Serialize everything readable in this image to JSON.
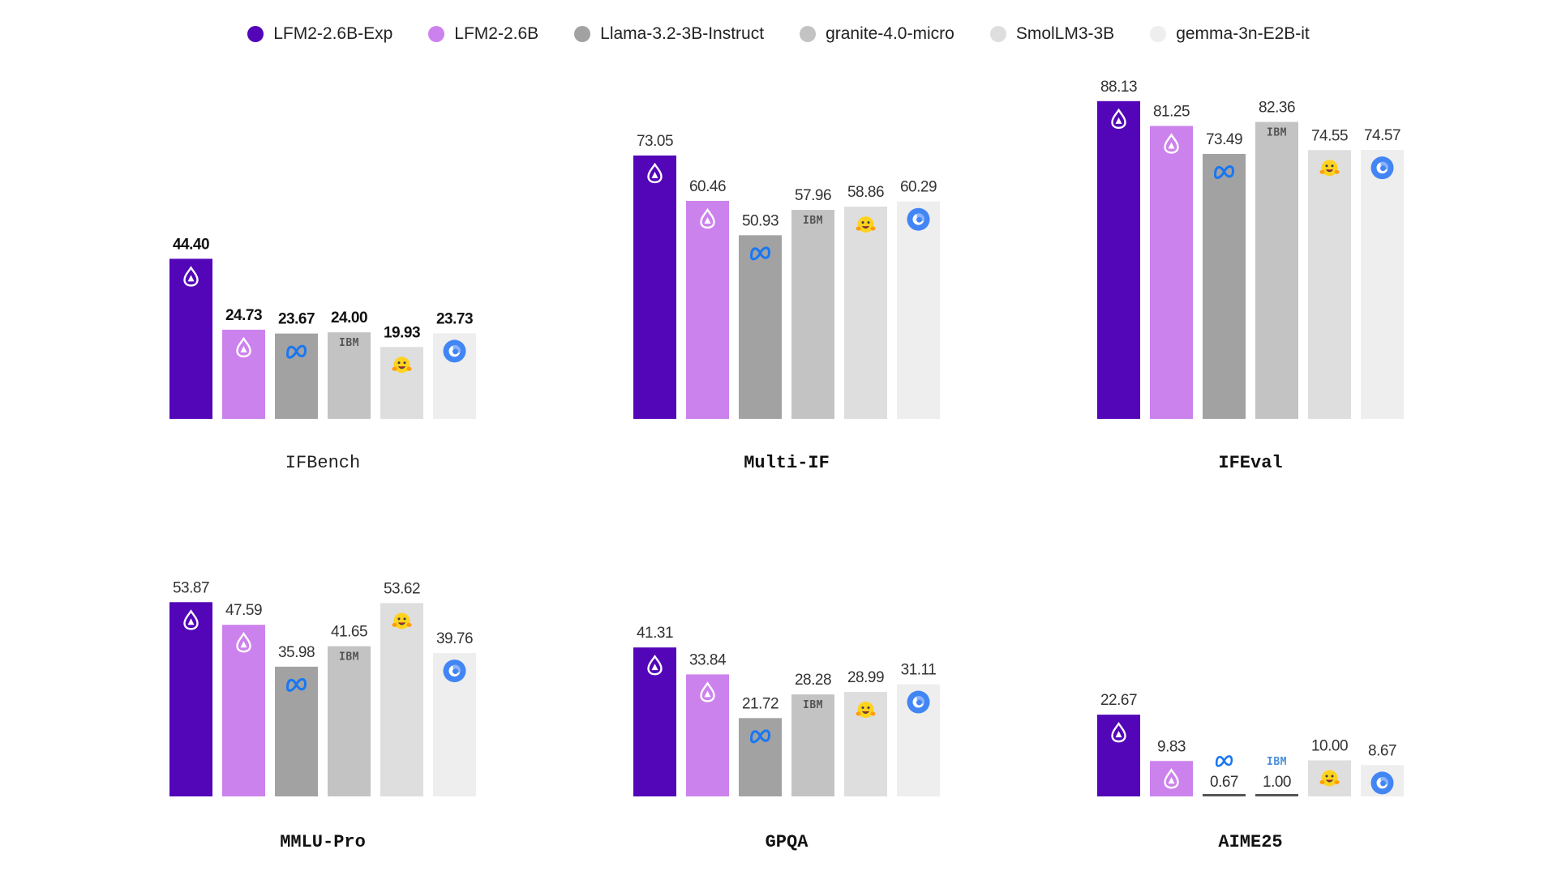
{
  "legend": [
    {
      "label": "LFM2-2.6B-Exp",
      "color": "#5305b8"
    },
    {
      "label": "LFM2-2.6B",
      "color": "#cc82ec"
    },
    {
      "label": "Llama-3.2-3B-Instruct",
      "color": "#a2a2a2"
    },
    {
      "label": "granite-4.0-micro",
      "color": "#c3c3c3"
    },
    {
      "label": "SmolLM3-3B",
      "color": "#dedede"
    },
    {
      "label": "gemma-3n-E2B-it",
      "color": "#eeeeee"
    }
  ],
  "icons": [
    "liquid-logo-icon",
    "liquid-logo-icon",
    "meta-logo-icon",
    "ibm-logo-icon",
    "huggingface-logo-icon",
    "gemma-logo-icon"
  ],
  "ibm_text": "IBM",
  "chart_data": [
    {
      "type": "bar",
      "title": "IFBench",
      "categories": [
        "LFM2-2.6B-Exp",
        "LFM2-2.6B",
        "Llama-3.2-3B-Instruct",
        "granite-4.0-micro",
        "SmolLM3-3B",
        "gemma-3n-E2B-it"
      ],
      "values": [
        44.4,
        24.73,
        23.67,
        24.0,
        19.93,
        23.73
      ],
      "labels": [
        "44.40",
        "24.73",
        "23.67",
        "24.00",
        "19.93",
        "23.73"
      ],
      "bold_labels": true
    },
    {
      "type": "bar",
      "title": "Multi-IF",
      "categories": [
        "LFM2-2.6B-Exp",
        "LFM2-2.6B",
        "Llama-3.2-3B-Instruct",
        "granite-4.0-micro",
        "SmolLM3-3B",
        "gemma-3n-E2B-it"
      ],
      "values": [
        73.05,
        60.46,
        50.93,
        57.96,
        58.86,
        60.29
      ],
      "labels": [
        "73.05",
        "60.46",
        "50.93",
        "57.96",
        "58.86",
        "60.29"
      ],
      "bold_labels": false
    },
    {
      "type": "bar",
      "title": "IFEval",
      "categories": [
        "LFM2-2.6B-Exp",
        "LFM2-2.6B",
        "Llama-3.2-3B-Instruct",
        "granite-4.0-micro",
        "SmolLM3-3B",
        "gemma-3n-E2B-it"
      ],
      "values": [
        88.13,
        81.25,
        73.49,
        82.36,
        74.55,
        74.57
      ],
      "labels": [
        "88.13",
        "81.25",
        "73.49",
        "82.36",
        "74.55",
        "74.57"
      ],
      "bold_labels": false
    },
    {
      "type": "bar",
      "title": "MMLU-Pro",
      "categories": [
        "LFM2-2.6B-Exp",
        "LFM2-2.6B",
        "Llama-3.2-3B-Instruct",
        "granite-4.0-micro",
        "SmolLM3-3B",
        "gemma-3n-E2B-it"
      ],
      "values": [
        53.87,
        47.59,
        35.98,
        41.65,
        53.62,
        39.76
      ],
      "labels": [
        "53.87",
        "47.59",
        "35.98",
        "41.65",
        "53.62",
        "39.76"
      ],
      "bold_labels": false
    },
    {
      "type": "bar",
      "title": "GPQA",
      "categories": [
        "LFM2-2.6B-Exp",
        "LFM2-2.6B",
        "Llama-3.2-3B-Instruct",
        "granite-4.0-micro",
        "SmolLM3-3B",
        "gemma-3n-E2B-it"
      ],
      "values": [
        41.31,
        33.84,
        21.72,
        28.28,
        28.99,
        31.11
      ],
      "labels": [
        "41.31",
        "33.84",
        "21.72",
        "28.28",
        "28.99",
        "31.11"
      ],
      "bold_labels": false
    },
    {
      "type": "bar",
      "title": "AIME25",
      "categories": [
        "LFM2-2.6B-Exp",
        "LFM2-2.6B",
        "Llama-3.2-3B-Instruct",
        "granite-4.0-micro",
        "SmolLM3-3B",
        "gemma-3n-E2B-it"
      ],
      "values": [
        22.67,
        9.83,
        0.67,
        1.0,
        10.0,
        8.67
      ],
      "labels": [
        "22.67",
        "9.83",
        "0.67",
        "1.00",
        "10.00",
        "8.67"
      ],
      "bold_labels": false
    }
  ]
}
